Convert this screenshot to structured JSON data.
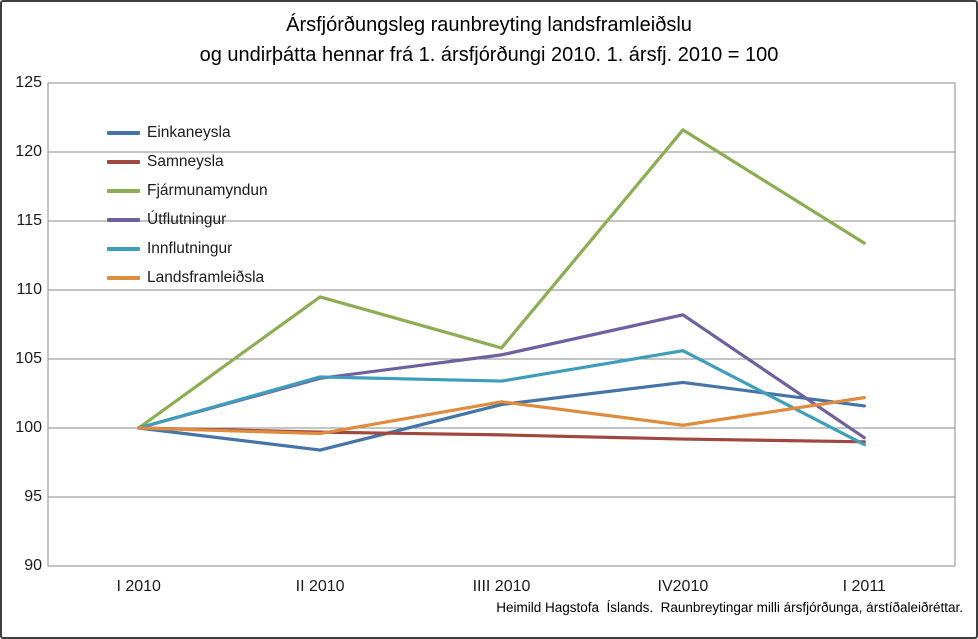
{
  "title": {
    "line1": "Ársfjórðungsleg raunbreyting landsframleiðslu",
    "line2": "og undirþátta hennar frá 1. ársfjórðungi 2010. 1. ársfj. 2010 = 100"
  },
  "footer": {
    "source_note": "Heimild Hagstofa  Íslands.  Raunbreytingar milli ársfjórðunga, árstíðaleiðréttar."
  },
  "chart_data": {
    "type": "line",
    "title": "Ársfjórðungsleg raunbreyting landsframleiðslu og undirþátta hennar frá 1. ársfjórðungi 2010. 1. ársfj. 2010 = 100",
    "categories": [
      "I 2010",
      "II 2010",
      "IIII 2010",
      "IV2010",
      "I 2011"
    ],
    "series": [
      {
        "name": "Einkaneysla",
        "color": "#4474A8",
        "values": [
          100,
          98.4,
          101.7,
          103.3,
          101.6
        ]
      },
      {
        "name": "Samneysla",
        "color": "#A0483F",
        "values": [
          100,
          99.7,
          99.5,
          99.2,
          99.0
        ]
      },
      {
        "name": "Fjármunamyndun",
        "color": "#8CAD52",
        "values": [
          100,
          109.5,
          105.8,
          121.6,
          113.4
        ]
      },
      {
        "name": "Útflutningur",
        "color": "#7060A0",
        "values": [
          100,
          103.6,
          105.3,
          108.2,
          99.3
        ]
      },
      {
        "name": "Innflutningur",
        "color": "#3E9EBB",
        "values": [
          100,
          103.7,
          103.4,
          105.6,
          98.8
        ]
      },
      {
        "name": "Landsframleiðsla",
        "color": "#DF8C3E",
        "values": [
          100,
          99.6,
          101.9,
          100.2,
          102.2
        ]
      }
    ],
    "y_axis": {
      "min": 90,
      "max": 125,
      "step": 5,
      "ticks": [
        125,
        120,
        115,
        110,
        105,
        100,
        95,
        90
      ]
    },
    "xlabel": "",
    "ylabel": "",
    "grid": true,
    "gridline_color": "#8a8a8a",
    "legend_position": "top-left-inside"
  }
}
